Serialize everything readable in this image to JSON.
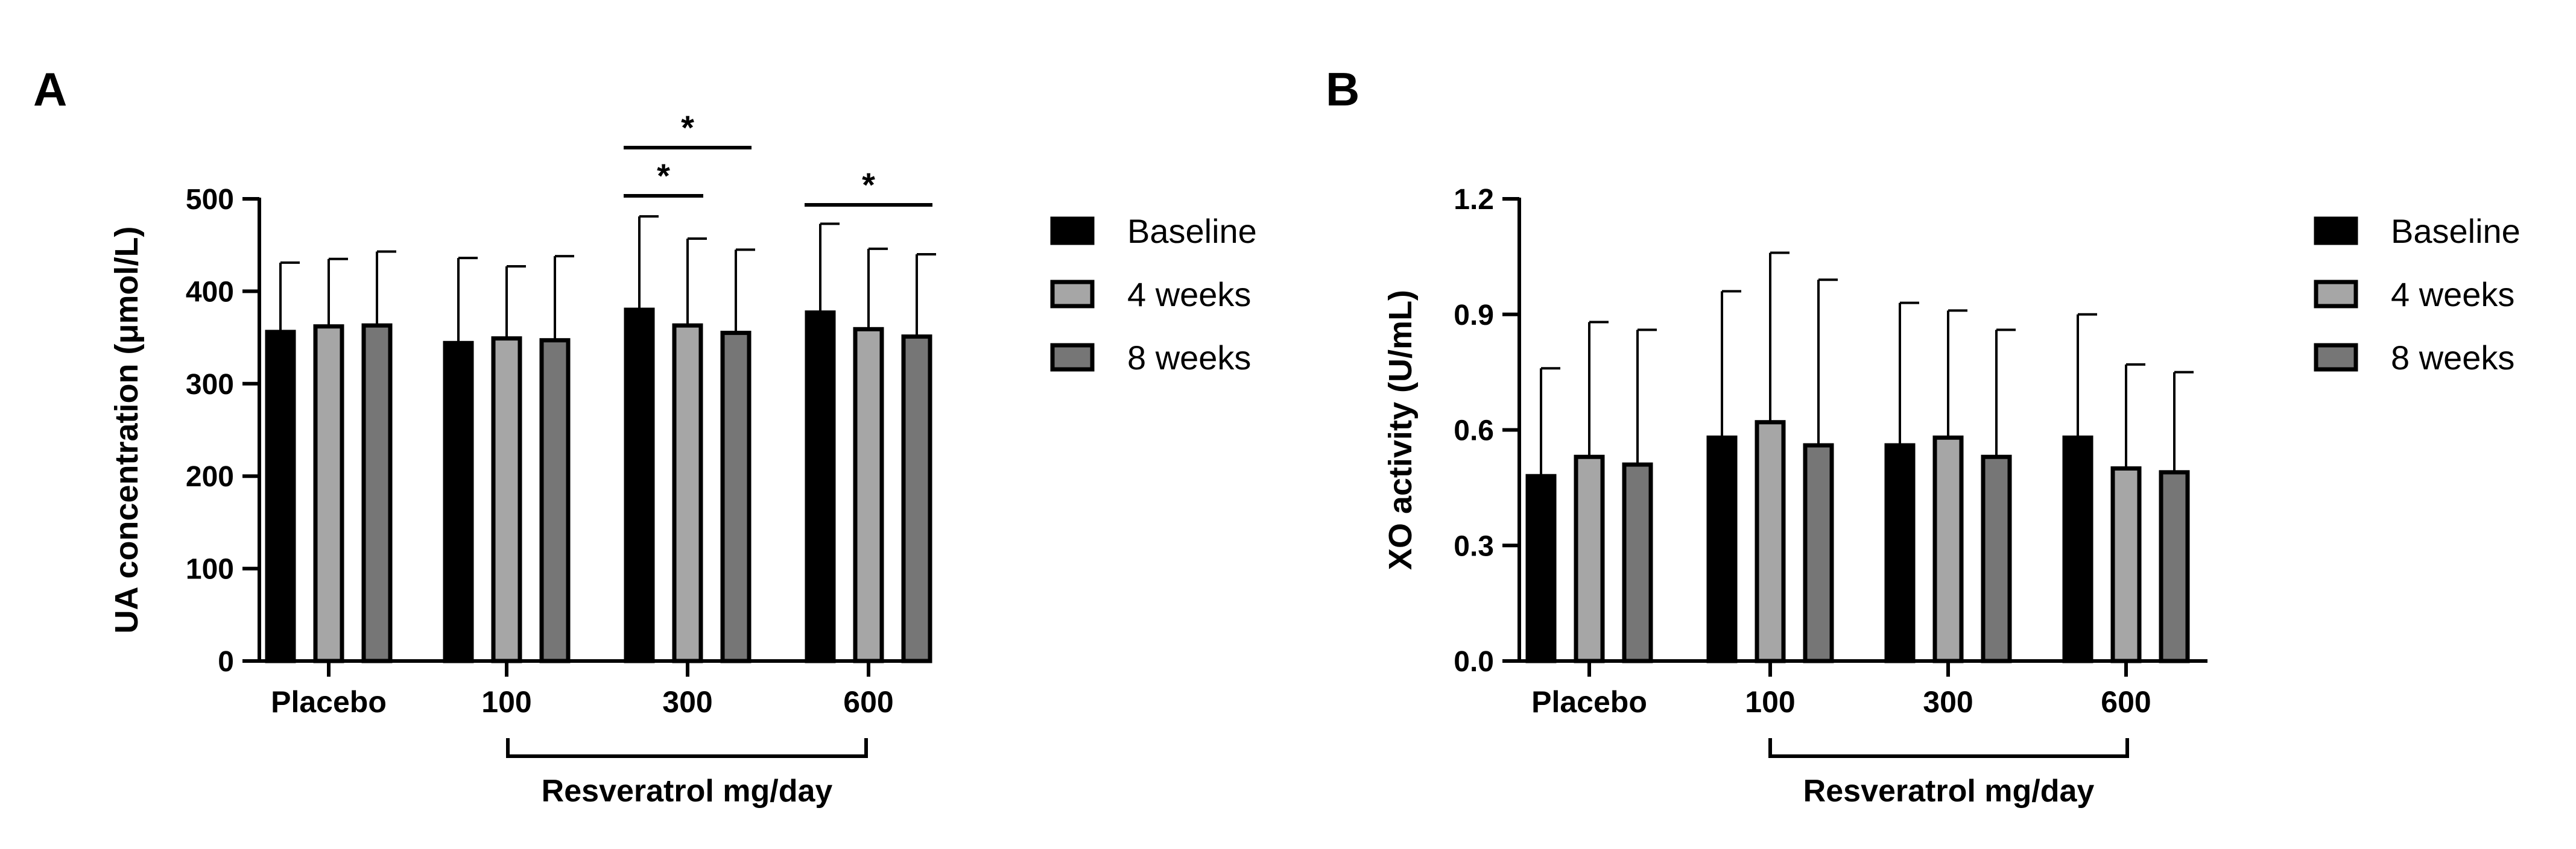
{
  "chart_data": [
    {
      "panel": "A",
      "type": "bar",
      "ylabel": "UA concentration (μmol/L)",
      "ylim": [
        0,
        500
      ],
      "yticks": [
        0,
        100,
        200,
        300,
        400,
        500
      ],
      "ytick_labels": [
        "0",
        "100",
        "200",
        "300",
        "400",
        "500"
      ],
      "categories": [
        "Placebo",
        "100",
        "300",
        "600"
      ],
      "group_bracket_label": "Resveratrol mg/day",
      "series": [
        {
          "name": "Baseline",
          "color": "#000000",
          "values": [
            356,
            344,
            380,
            377
          ],
          "errors": [
            75,
            92,
            101,
            96
          ]
        },
        {
          "name": "4 weeks",
          "color": "#a6a6a6",
          "values": [
            362,
            349,
            363,
            359
          ],
          "errors": [
            73,
            78,
            94,
            87
          ]
        },
        {
          "name": "8 weeks",
          "color": "#767676",
          "values": [
            363,
            347,
            355,
            351
          ],
          "errors": [
            80,
            91,
            90,
            89
          ]
        }
      ],
      "significance": [
        {
          "label": "*",
          "category": "300",
          "from": "Baseline",
          "to": "4 weeks",
          "level": 1
        },
        {
          "label": "*",
          "category": "300",
          "from": "Baseline",
          "to": "8 weeks",
          "level": 2
        },
        {
          "label": "*",
          "category": "600",
          "from": "Baseline",
          "to": "8 weeks",
          "level": 1
        }
      ]
    },
    {
      "panel": "B",
      "type": "bar",
      "ylabel": "XO activity (U/mL)",
      "ylim": [
        0,
        1.2
      ],
      "yticks": [
        0,
        0.3,
        0.6,
        0.9,
        1.2
      ],
      "ytick_labels": [
        "0.0",
        "0.3",
        "0.6",
        "0.9",
        "1.2"
      ],
      "categories": [
        "Placebo",
        "100",
        "300",
        "600"
      ],
      "group_bracket_label": "Resveratrol mg/day",
      "series": [
        {
          "name": "Baseline",
          "color": "#000000",
          "values": [
            0.48,
            0.58,
            0.56,
            0.58
          ],
          "errors": [
            0.28,
            0.38,
            0.37,
            0.32
          ]
        },
        {
          "name": "4 weeks",
          "color": "#a6a6a6",
          "values": [
            0.53,
            0.62,
            0.58,
            0.5
          ],
          "errors": [
            0.35,
            0.44,
            0.33,
            0.27
          ]
        },
        {
          "name": "8 weeks",
          "color": "#767676",
          "values": [
            0.51,
            0.56,
            0.53,
            0.49
          ],
          "errors": [
            0.35,
            0.43,
            0.33,
            0.26
          ]
        }
      ],
      "significance": []
    }
  ]
}
